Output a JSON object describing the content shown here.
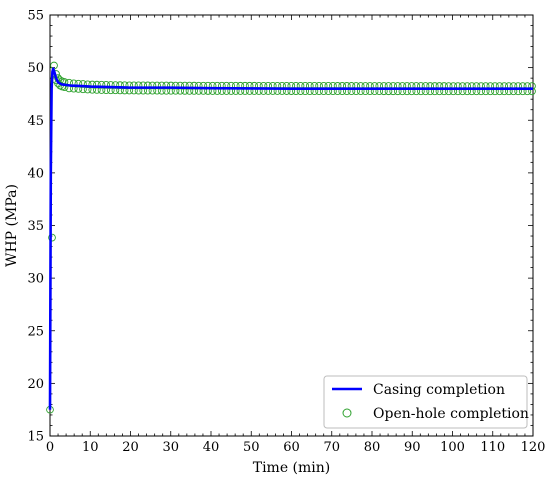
{
  "chart_data": {
    "type": "line",
    "title": "",
    "xlabel": "Time (min)",
    "ylabel": "WHP (MPa)",
    "xlim": [
      0,
      120
    ],
    "ylim": [
      15,
      55
    ],
    "x_ticks": [
      0,
      10,
      20,
      30,
      40,
      50,
      60,
      70,
      80,
      90,
      100,
      110,
      120
    ],
    "y_ticks": [
      15,
      20,
      25,
      30,
      35,
      40,
      45,
      50,
      55
    ],
    "grid": false,
    "legend_position": "bottom-right",
    "series": [
      {
        "name": "Casing completion",
        "style": "line",
        "color": "#0000ff",
        "x": [
          0,
          0.2,
          0.4,
          0.6,
          0.8,
          1.0,
          1.5,
          2,
          3,
          5,
          8,
          10,
          15,
          20,
          30,
          40,
          60,
          80,
          100,
          120
        ],
        "y": [
          17.5,
          40.0,
          48.0,
          49.6,
          49.9,
          49.7,
          49.0,
          48.6,
          48.4,
          48.3,
          48.25,
          48.2,
          48.15,
          48.1,
          48.1,
          48.05,
          48.0,
          48.0,
          48.0,
          48.0
        ]
      },
      {
        "name": "Open-hole completion",
        "style": "markers",
        "color": "#2ca02c",
        "x": [
          0,
          1,
          1.5,
          2,
          2.5,
          3,
          4,
          5,
          6,
          8,
          10,
          15,
          20,
          30,
          40,
          60,
          80,
          100,
          120
        ],
        "y_upper": [
          17.5,
          50.2,
          49.4,
          49.0,
          48.8,
          48.7,
          48.6,
          48.55,
          48.5,
          48.45,
          48.4,
          48.35,
          48.32,
          48.3,
          48.28,
          48.27,
          48.26,
          48.25,
          48.25
        ],
        "y_lower": [
          17.5,
          50.2,
          48.8,
          48.5,
          48.3,
          48.2,
          48.1,
          48.0,
          48.0,
          47.95,
          47.9,
          47.85,
          47.82,
          47.8,
          47.78,
          47.77,
          47.76,
          47.75,
          47.75
        ]
      }
    ]
  }
}
